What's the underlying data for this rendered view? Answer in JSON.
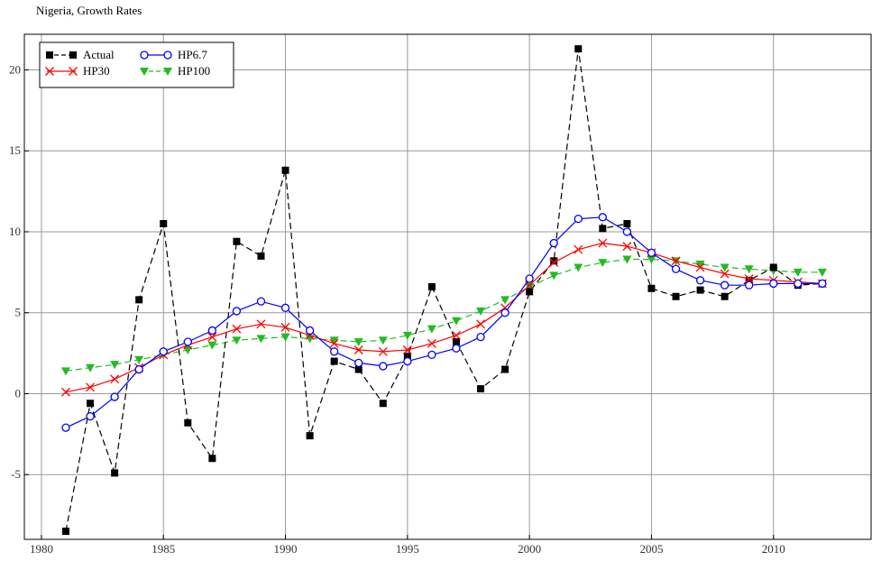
{
  "title": "Nigeria, Growth Rates",
  "chart_data": {
    "type": "line",
    "title": "Nigeria, Growth Rates",
    "xlabel": "",
    "ylabel": "",
    "xlim": [
      1979.3,
      2014.0
    ],
    "ylim": [
      -9.0,
      22.2
    ],
    "x_ticks": [
      1980,
      1985,
      1990,
      1995,
      2000,
      2005,
      2010
    ],
    "y_ticks": [
      -5,
      0,
      5,
      10,
      15,
      20
    ],
    "grid": true,
    "legend_position": "top-left",
    "x": [
      1981,
      1982,
      1983,
      1984,
      1985,
      1986,
      1987,
      1988,
      1989,
      1990,
      1991,
      1992,
      1993,
      1994,
      1995,
      1996,
      1997,
      1998,
      1999,
      2000,
      2001,
      2002,
      2003,
      2004,
      2005,
      2006,
      2007,
      2008,
      2009,
      2010,
      2011,
      2012
    ],
    "series": [
      {
        "name": "Actual",
        "color": "#000000",
        "marker": "square",
        "dash": "dashed",
        "values": [
          -8.5,
          -0.6,
          -4.9,
          5.8,
          10.5,
          -1.8,
          -4.0,
          9.4,
          8.5,
          13.8,
          -2.6,
          2.0,
          1.5,
          -0.6,
          2.3,
          6.6,
          3.2,
          0.3,
          1.5,
          6.3,
          8.2,
          21.3,
          10.2,
          10.5,
          6.5,
          6.0,
          6.4,
          6.0,
          7.0,
          7.8,
          6.7,
          6.8
        ]
      },
      {
        "name": "HP6.7",
        "color": "#0000ff",
        "marker": "circle-open",
        "dash": "solid",
        "values": [
          -2.1,
          -1.4,
          -0.2,
          1.5,
          2.6,
          3.2,
          3.9,
          5.1,
          5.7,
          5.3,
          3.9,
          2.6,
          1.9,
          1.7,
          2.0,
          2.4,
          2.8,
          3.5,
          5.0,
          7.1,
          9.3,
          10.8,
          10.9,
          10.0,
          8.7,
          7.7,
          7.0,
          6.7,
          6.7,
          6.8,
          6.8,
          6.8
        ]
      },
      {
        "name": "HP30",
        "color": "#ff0000",
        "marker": "x",
        "dash": "solid",
        "values": [
          0.1,
          0.4,
          0.9,
          1.6,
          2.4,
          3.0,
          3.5,
          4.0,
          4.3,
          4.1,
          3.6,
          3.1,
          2.7,
          2.6,
          2.7,
          3.1,
          3.6,
          4.3,
          5.3,
          6.7,
          8.1,
          8.9,
          9.3,
          9.1,
          8.7,
          8.2,
          7.8,
          7.4,
          7.1,
          7.0,
          6.9,
          6.8
        ]
      },
      {
        "name": "HP100",
        "color": "#22bb22",
        "marker": "triangle-down",
        "dash": "dashed",
        "values": [
          1.4,
          1.6,
          1.8,
          2.1,
          2.4,
          2.7,
          3.0,
          3.3,
          3.4,
          3.5,
          3.4,
          3.3,
          3.2,
          3.3,
          3.6,
          4.0,
          4.5,
          5.1,
          5.8,
          6.6,
          7.3,
          7.8,
          8.1,
          8.3,
          8.3,
          8.2,
          8.0,
          7.8,
          7.7,
          7.6,
          7.5,
          7.5
        ]
      }
    ]
  }
}
